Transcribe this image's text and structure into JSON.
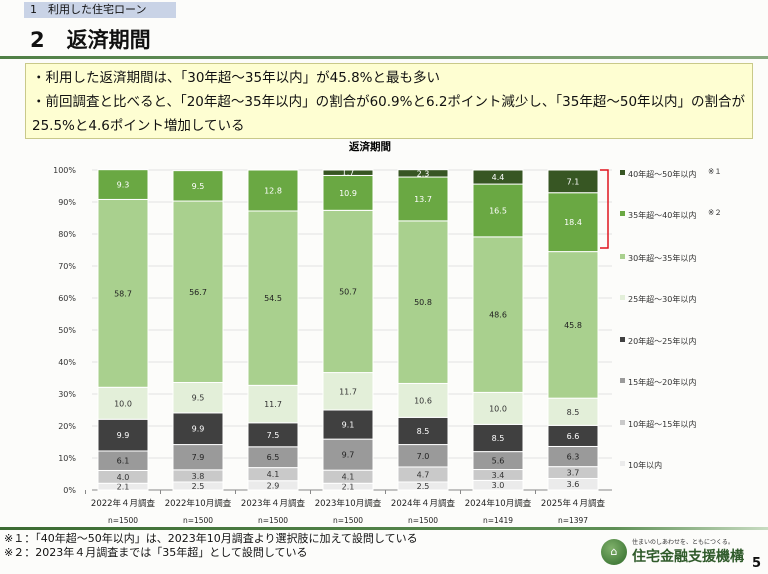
{
  "header": {
    "section": "1　利用した住宅ローン",
    "number": "2",
    "title": "返済期間"
  },
  "summary": [
    "・利用した返済期間は、「30年超～35年以内」が45.8%と最も多い",
    "・前回調査と比べると、「20年超～35年以内」の割合が60.9%と6.2ポイント減少し、「35年超～50年以内」の割合が25.5%と4.6ポイント増加している"
  ],
  "chart_data": {
    "type": "bar",
    "stacked": true,
    "title": "返済期間",
    "categories": [
      "2022年４月調査",
      "2022年10月調査",
      "2023年４月調査",
      "2023年10月調査",
      "2024年４月調査",
      "2024年10月調査",
      "2025年４月調査"
    ],
    "n_labels": [
      "n=1500",
      "n=1500",
      "n=1500",
      "n=1500",
      "n=1500",
      "n=1419",
      "n=1397"
    ],
    "ylim": [
      0,
      100
    ],
    "yticks": [
      "0%",
      "10%",
      "20%",
      "30%",
      "40%",
      "50%",
      "60%",
      "70%",
      "80%",
      "90%",
      "100%"
    ],
    "legend_position": "right",
    "grid": true,
    "series": [
      {
        "name": "10年以内",
        "color": "#ebebeb",
        "text": "#333",
        "values": [
          2.1,
          2.5,
          2.9,
          2.1,
          2.5,
          3.0,
          3.6
        ]
      },
      {
        "name": "10年超～15年以内",
        "color": "#c9c9c9",
        "text": "#333",
        "values": [
          4.0,
          3.8,
          4.1,
          4.1,
          4.7,
          3.4,
          3.7
        ]
      },
      {
        "name": "15年超～20年以内",
        "color": "#9a9a9a",
        "text": "#222",
        "values": [
          6.1,
          7.9,
          6.5,
          9.7,
          7.0,
          5.6,
          6.3
        ]
      },
      {
        "name": "20年超～25年以内",
        "color": "#404040",
        "text": "#fff",
        "values": [
          9.9,
          9.9,
          7.5,
          9.1,
          8.5,
          8.5,
          6.6
        ]
      },
      {
        "name": "25年超～30年以内",
        "color": "#e3efd9",
        "text": "#333",
        "values": [
          10.0,
          9.5,
          11.7,
          11.7,
          10.6,
          10.0,
          8.5
        ]
      },
      {
        "name": "30年超～35年以内",
        "color": "#a9d08e",
        "text": "#222",
        "values": [
          58.7,
          56.7,
          54.5,
          50.7,
          50.8,
          48.6,
          45.8
        ]
      },
      {
        "name": "35年超～40年以内",
        "note": "※２",
        "color": "#6aa843",
        "text": "#fff",
        "values": [
          9.3,
          9.5,
          12.8,
          10.9,
          13.7,
          16.5,
          18.4
        ]
      },
      {
        "name": "40年超～50年以内",
        "note": "※１",
        "color": "#375623",
        "text": "#fff",
        "values": [
          null,
          null,
          null,
          1.7,
          2.3,
          4.4,
          7.1
        ]
      }
    ]
  },
  "notes": [
    "※１：「40年超～50年以内」は、2023年10月調査より選択肢に加えて設問している",
    "※２：2023年４月調査までは「35年超」として設問している"
  ],
  "logo": {
    "tagline": "住まいのしあわせを、ともにつくる。",
    "name": "住宅金融支援機構"
  },
  "page_number": "5"
}
